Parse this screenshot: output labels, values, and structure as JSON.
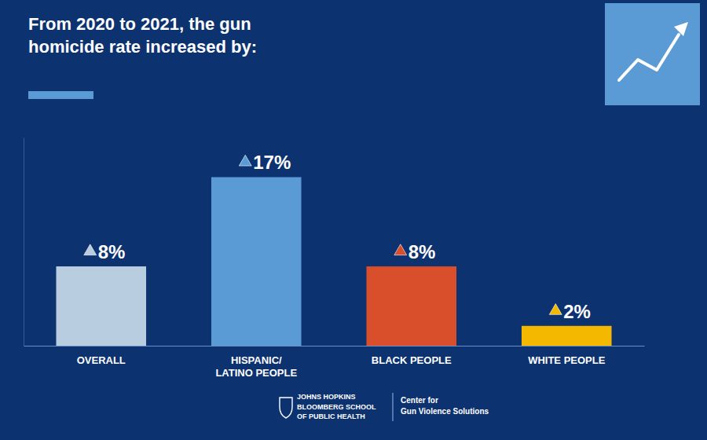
{
  "chart_data": {
    "type": "bar",
    "title": "From 2020 to 2021, the gun\nhomicide rate increased by:",
    "categories": [
      "OVERALL",
      "HISPANIC/\nLATINO PEOPLE",
      "BLACK PEOPLE",
      "WHITE PEOPLE"
    ],
    "values": [
      8,
      17,
      8,
      2
    ],
    "value_labels": [
      "8%",
      "17%",
      "8%",
      "2%"
    ],
    "colors": [
      "#b8cde0",
      "#5b9bd5",
      "#d94f2b",
      "#f5b800"
    ],
    "ylim": [
      0,
      21
    ],
    "grid": false,
    "data_labels": true,
    "tick_labels": "x",
    "annotations": [
      "JOHNS HOPKINS\nBLOOMBERG SCHOOL\nOF PUBLIC HEALTH",
      "Center for\nGun Violence Solutions"
    ]
  }
}
